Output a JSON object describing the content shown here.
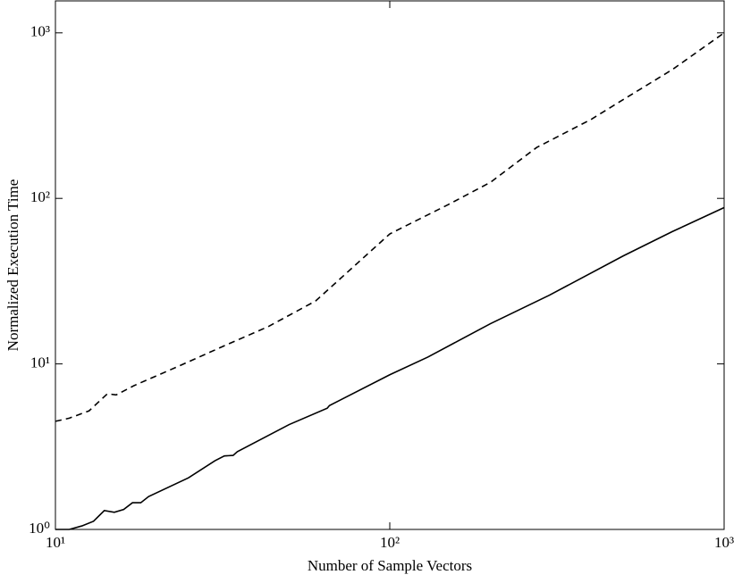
{
  "chart_data": {
    "type": "line",
    "xlabel": "Number of Sample Vectors",
    "ylabel": "Normalized Execution Time",
    "xscale": "log",
    "yscale": "log",
    "xlim": [
      10,
      1000
    ],
    "ylim": [
      1,
      1560
    ],
    "xticks": [
      {
        "value": 10,
        "label": "10¹"
      },
      {
        "value": 100,
        "label": "10²"
      },
      {
        "value": 1000,
        "label": "10³"
      }
    ],
    "yticks": [
      {
        "value": 1,
        "label": "10⁰"
      },
      {
        "value": 10,
        "label": "10¹"
      },
      {
        "value": 100,
        "label": "10²"
      },
      {
        "value": 1000,
        "label": "10³"
      }
    ],
    "series": [
      {
        "style": "solid",
        "color": "#000000",
        "x": [
          10,
          11,
          12,
          13,
          14,
          15,
          16,
          17,
          18,
          19,
          25,
          30,
          32,
          34,
          35,
          50,
          65,
          66,
          100,
          130,
          200,
          300,
          500,
          700,
          1000
        ],
        "values": [
          1.0,
          1.0,
          1.05,
          1.12,
          1.3,
          1.27,
          1.32,
          1.45,
          1.45,
          1.58,
          2.05,
          2.6,
          2.78,
          2.8,
          2.95,
          4.3,
          5.4,
          5.6,
          8.6,
          11.0,
          17.5,
          26,
          45,
          63,
          88
        ]
      },
      {
        "style": "dashed",
        "color": "#000000",
        "x": [
          10,
          11,
          12.6,
          14.3,
          15.2,
          17.2,
          23.4,
          31.8,
          43.3,
          60,
          100,
          150,
          200,
          275,
          400,
          509,
          700,
          1000
        ],
        "values": [
          4.5,
          4.7,
          5.2,
          6.6,
          6.5,
          7.4,
          9.7,
          12.8,
          16.8,
          24,
          61,
          92,
          125,
          203,
          300,
          405,
          600,
          1000
        ]
      }
    ]
  }
}
